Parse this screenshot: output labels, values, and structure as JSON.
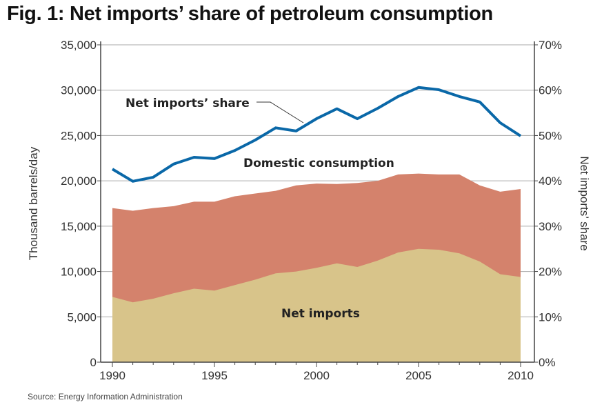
{
  "chart_data": {
    "type": "area",
    "title": "Fig. 1: Net imports’ share of petroleum consumption",
    "source": "Source: Energy Information Administration",
    "ylabel": "Thousand barrels/day",
    "y2label": "Net imports’ share",
    "ylim": [
      0,
      35000
    ],
    "y2lim": [
      0,
      70
    ],
    "xlim": [
      1990,
      2010
    ],
    "y_ticks": [
      "0",
      "5,000",
      "10,000",
      "15,000",
      "20,000",
      "25,000",
      "30,000",
      "35,000"
    ],
    "y2_ticks": [
      "0%",
      "10%",
      "20%",
      "30%",
      "40%",
      "50%",
      "60%",
      "70%"
    ],
    "x_ticks": [
      "1990",
      "1995",
      "2000",
      "2005",
      "2010"
    ],
    "grid": true,
    "x": [
      1990,
      1991,
      1992,
      1993,
      1994,
      1995,
      1996,
      1997,
      1998,
      1999,
      2000,
      2001,
      2002,
      2003,
      2004,
      2005,
      2006,
      2007,
      2008,
      2009,
      2010
    ],
    "series": [
      {
        "name": "Domestic consumption",
        "axis": "left",
        "type": "area",
        "color": "#d4826c",
        "values": [
          17000,
          16700,
          17000,
          17200,
          17700,
          17700,
          18300,
          18600,
          18900,
          19500,
          19700,
          19650,
          19760,
          20000,
          20700,
          20800,
          20700,
          20700,
          19500,
          18800,
          19100
        ]
      },
      {
        "name": "Net imports",
        "axis": "left",
        "type": "area",
        "color": "#d8c48a",
        "values": [
          7200,
          6600,
          7000,
          7600,
          8100,
          7900,
          8500,
          9100,
          9800,
          10000,
          10400,
          10900,
          10500,
          11200,
          12100,
          12500,
          12400,
          12000,
          11100,
          9700,
          9400
        ]
      },
      {
        "name": "Net imports’ share",
        "axis": "right",
        "type": "line",
        "color": "#0a68a8",
        "values": [
          42.6,
          39.9,
          40.8,
          43.7,
          45.2,
          44.9,
          46.7,
          49.0,
          51.7,
          51.0,
          53.7,
          55.9,
          53.7,
          56.0,
          58.6,
          60.6,
          60.1,
          58.6,
          57.4,
          52.8,
          49.9
        ]
      }
    ]
  }
}
